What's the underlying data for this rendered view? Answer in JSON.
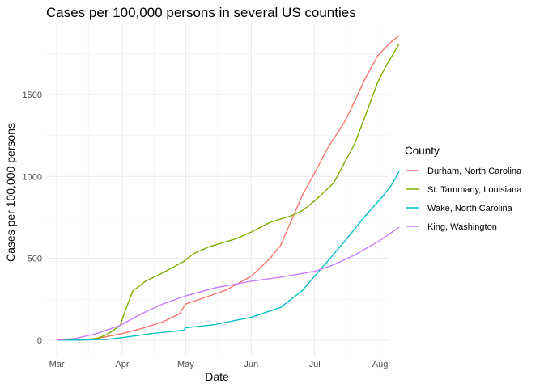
{
  "chart_data": {
    "type": "line",
    "title": "Cases per 100,000 persons in several US counties",
    "xlabel": "Date",
    "ylabel": "Cases per 100,000 persons",
    "x_ticks": [
      "2020-03-01",
      "2020-04-01",
      "2020-05-01",
      "2020-06-01",
      "2020-07-01",
      "2020-08-01"
    ],
    "x_tick_labels": [
      "Mar",
      "Apr",
      "May",
      "Jun",
      "Jul",
      "Aug"
    ],
    "y_ticks": [
      0,
      500,
      1000,
      1500
    ],
    "xlim": [
      "2020-02-25",
      "2020-08-05"
    ],
    "ylim": [
      -95,
      1930
    ],
    "grid": true,
    "legend": {
      "title": "County",
      "position": "right"
    },
    "series": [
      {
        "name": "Durham, North Carolina",
        "color": "#f8766d",
        "points": [
          [
            "2020-03-01",
            0
          ],
          [
            "2020-03-15",
            3
          ],
          [
            "2020-03-20",
            10
          ],
          [
            "2020-03-25",
            22
          ],
          [
            "2020-04-01",
            40
          ],
          [
            "2020-04-10",
            70
          ],
          [
            "2020-04-20",
            110
          ],
          [
            "2020-04-28",
            160
          ],
          [
            "2020-05-01",
            220
          ],
          [
            "2020-05-10",
            260
          ],
          [
            "2020-05-20",
            305
          ],
          [
            "2020-06-01",
            390
          ],
          [
            "2020-06-10",
            500
          ],
          [
            "2020-06-15",
            580
          ],
          [
            "2020-06-20",
            730
          ],
          [
            "2020-06-25",
            880
          ],
          [
            "2020-07-01",
            1020
          ],
          [
            "2020-07-07",
            1170
          ],
          [
            "2020-07-15",
            1330
          ],
          [
            "2020-07-20",
            1460
          ],
          [
            "2020-07-25",
            1600
          ],
          [
            "2020-07-31",
            1740
          ],
          [
            "2020-08-06",
            1820
          ],
          [
            "2020-08-10",
            1860
          ]
        ]
      },
      {
        "name": "St. Tammany, Louisiana",
        "color": "#7cae00",
        "points": [
          [
            "2020-03-01",
            0
          ],
          [
            "2020-03-15",
            2
          ],
          [
            "2020-03-20",
            10
          ],
          [
            "2020-03-25",
            35
          ],
          [
            "2020-03-31",
            90
          ],
          [
            "2020-04-03",
            200
          ],
          [
            "2020-04-06",
            300
          ],
          [
            "2020-04-12",
            360
          ],
          [
            "2020-04-20",
            410
          ],
          [
            "2020-04-30",
            480
          ],
          [
            "2020-05-05",
            530
          ],
          [
            "2020-05-12",
            570
          ],
          [
            "2020-05-25",
            620
          ],
          [
            "2020-06-01",
            660
          ],
          [
            "2020-06-10",
            720
          ],
          [
            "2020-06-20",
            760
          ],
          [
            "2020-06-25",
            790
          ],
          [
            "2020-07-01",
            850
          ],
          [
            "2020-07-10",
            960
          ],
          [
            "2020-07-20",
            1200
          ],
          [
            "2020-07-27",
            1440
          ],
          [
            "2020-07-31",
            1580
          ],
          [
            "2020-08-04",
            1680
          ],
          [
            "2020-08-10",
            1810
          ]
        ]
      },
      {
        "name": "Wake, North Carolina",
        "color": "#00bfc4",
        "points": [
          [
            "2020-03-01",
            0
          ],
          [
            "2020-03-15",
            1
          ],
          [
            "2020-03-25",
            5
          ],
          [
            "2020-04-01",
            15
          ],
          [
            "2020-04-15",
            40
          ],
          [
            "2020-04-30",
            60
          ],
          [
            "2020-05-01",
            75
          ],
          [
            "2020-05-15",
            95
          ],
          [
            "2020-06-01",
            140
          ],
          [
            "2020-06-15",
            200
          ],
          [
            "2020-06-25",
            300
          ],
          [
            "2020-07-01",
            390
          ],
          [
            "2020-07-07",
            480
          ],
          [
            "2020-07-15",
            600
          ],
          [
            "2020-07-25",
            760
          ],
          [
            "2020-08-01",
            860
          ],
          [
            "2020-08-06",
            940
          ],
          [
            "2020-08-10",
            1030
          ]
        ]
      },
      {
        "name": "King, Washington",
        "color": "#c77cff",
        "points": [
          [
            "2020-03-01",
            0
          ],
          [
            "2020-03-10",
            10
          ],
          [
            "2020-03-20",
            40
          ],
          [
            "2020-03-31",
            90
          ],
          [
            "2020-04-10",
            160
          ],
          [
            "2020-04-20",
            220
          ],
          [
            "2020-05-01",
            270
          ],
          [
            "2020-05-15",
            320
          ],
          [
            "2020-06-01",
            360
          ],
          [
            "2020-06-15",
            385
          ],
          [
            "2020-07-01",
            420
          ],
          [
            "2020-07-10",
            460
          ],
          [
            "2020-07-20",
            520
          ],
          [
            "2020-08-01",
            610
          ],
          [
            "2020-08-10",
            690
          ]
        ]
      }
    ]
  }
}
